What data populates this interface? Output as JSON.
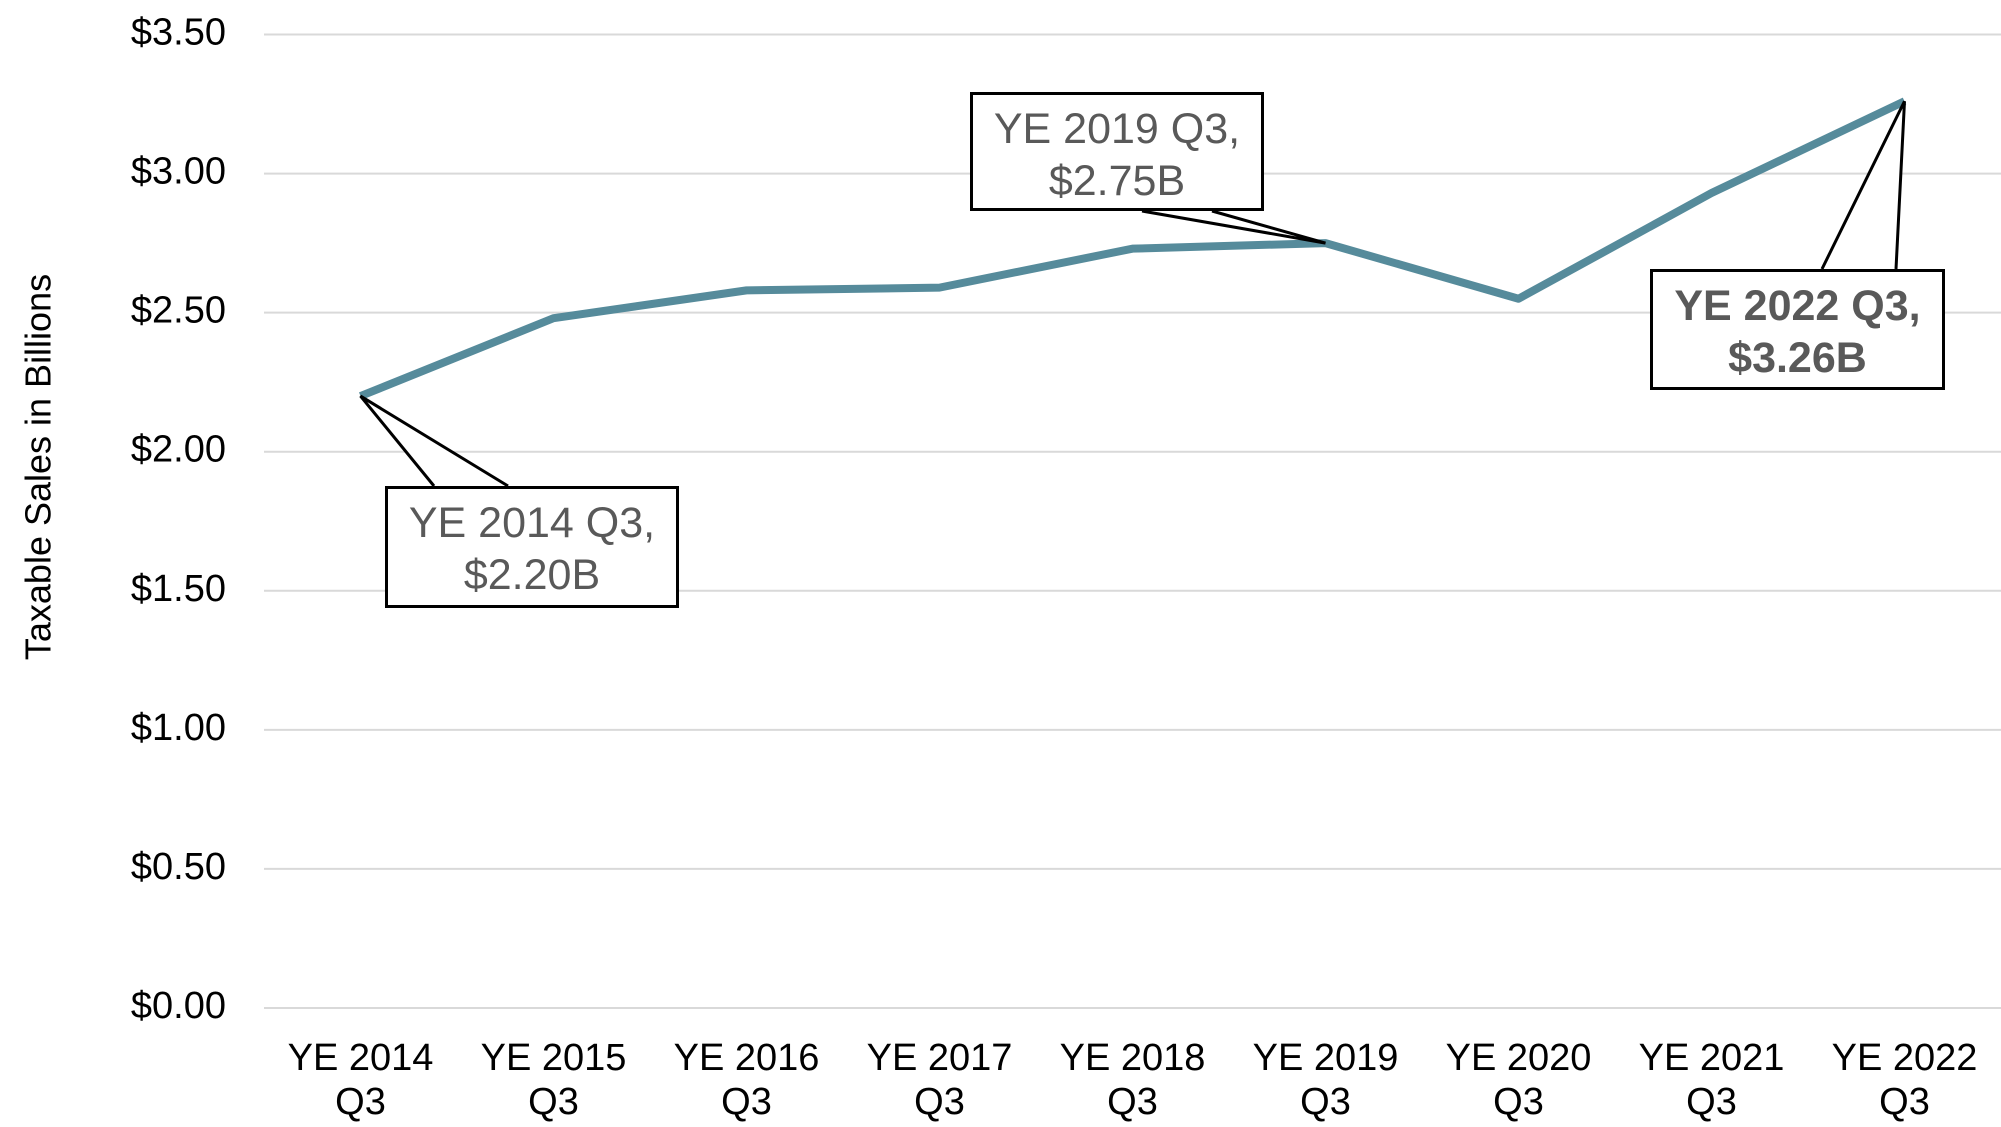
{
  "chart_data": {
    "type": "line",
    "y_axis_label": "Taxable Sales in Billions",
    "categories": [
      "YE 2014 Q3",
      "YE 2015 Q3",
      "YE 2016 Q3",
      "YE 2017 Q3",
      "YE 2018 Q3",
      "YE 2019 Q3",
      "YE 2020 Q3",
      "YE 2021 Q3",
      "YE 2022 Q3"
    ],
    "values": [
      2.2,
      2.48,
      2.58,
      2.59,
      2.73,
      2.75,
      2.55,
      2.93,
      3.26
    ],
    "color": "#568b9b",
    "ylim": [
      0,
      3.5
    ],
    "yticks": [
      {
        "value": 0,
        "label": "$0.00"
      },
      {
        "value": 0.5,
        "label": "$0.50"
      },
      {
        "value": 1,
        "label": "$1.00"
      },
      {
        "value": 1.5,
        "label": "$1.50"
      },
      {
        "value": 2,
        "label": "$2.00"
      },
      {
        "value": 2.5,
        "label": "$2.50"
      },
      {
        "value": 3,
        "label": "$3.00"
      },
      {
        "value": 3.5,
        "label": "$3.50"
      }
    ],
    "grid": true,
    "annotations": [
      "YE 2014 Q3, $2.20B",
      "YE 2019 Q3, $2.75B",
      "YE 2022 Q3, $3.26B"
    ]
  }
}
